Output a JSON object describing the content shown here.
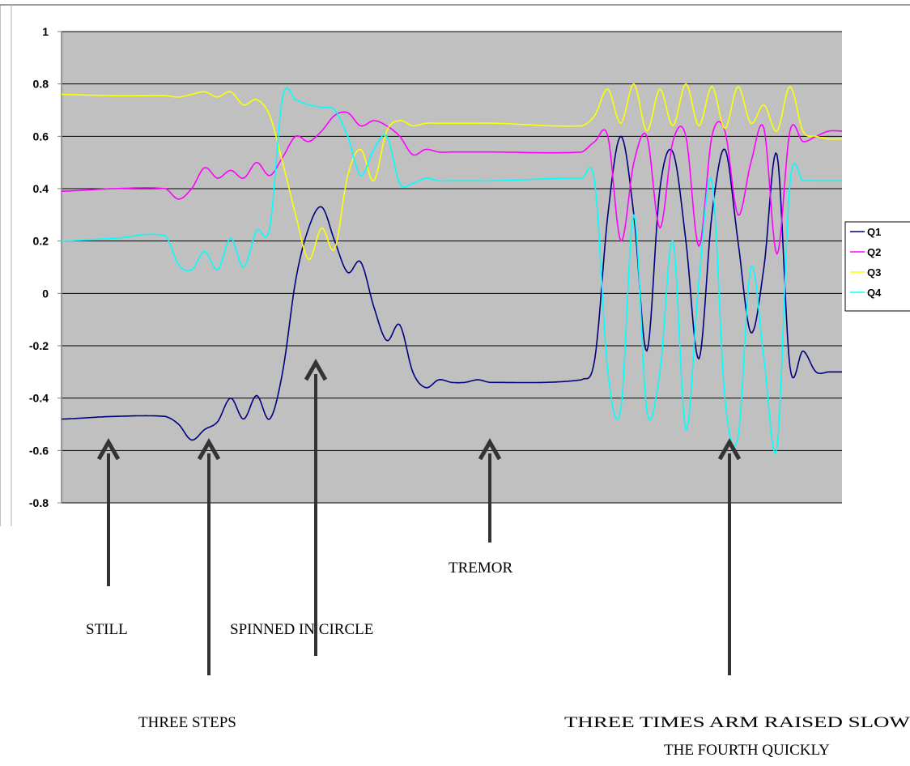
{
  "chart_data": {
    "type": "line",
    "title": "",
    "xlabel": "",
    "ylabel": "",
    "xlim": [
      0,
      300
    ],
    "ylim": [
      -0.8,
      1
    ],
    "yticks": [
      -0.8,
      -0.6,
      -0.4,
      -0.2,
      0,
      0.2,
      0.4,
      0.6,
      0.8,
      1
    ],
    "ytick_labels": [
      "-0.8",
      "-0.6",
      "-0.4",
      "-0.2",
      "0",
      "0.2",
      "0.4",
      "0.6",
      "0.8",
      "1"
    ],
    "grid": true,
    "legend_position": "right",
    "colors": {
      "Q1": "#000080",
      "Q2": "#ff00ff",
      "Q3": "#ffff00",
      "Q4": "#00ffff",
      "plot_bg": "#c0c0c0"
    },
    "series": [
      {
        "name": "Q1",
        "color": "#000080",
        "x": [
          0,
          20,
          40,
          45,
          50,
          55,
          60,
          65,
          70,
          75,
          80,
          85,
          90,
          95,
          100,
          105,
          110,
          115,
          120,
          125,
          130,
          135,
          140,
          145,
          150,
          155,
          160,
          165,
          200,
          205,
          210,
          215,
          220,
          225,
          230,
          235,
          240,
          245,
          250,
          255,
          260,
          265,
          270,
          275,
          280,
          285,
          290,
          295,
          300
        ],
        "y": [
          -0.48,
          -0.47,
          -0.47,
          -0.5,
          -0.56,
          -0.52,
          -0.49,
          -0.4,
          -0.48,
          -0.39,
          -0.48,
          -0.3,
          0.05,
          0.25,
          0.33,
          0.2,
          0.08,
          0.12,
          -0.05,
          -0.18,
          -0.12,
          -0.3,
          -0.36,
          -0.33,
          -0.34,
          -0.34,
          -0.33,
          -0.34,
          -0.33,
          -0.25,
          0.3,
          0.6,
          0.3,
          -0.22,
          0.4,
          0.54,
          0.2,
          -0.25,
          0.3,
          0.55,
          0.2,
          -0.15,
          0.1,
          0.53,
          -0.28,
          -0.22,
          -0.3,
          -0.3,
          -0.3
        ],
        "tremor": [
          [
            130,
            210,
            0.018
          ]
        ]
      },
      {
        "name": "Q2",
        "color": "#ff00ff",
        "x": [
          0,
          20,
          40,
          45,
          50,
          55,
          60,
          65,
          70,
          75,
          80,
          85,
          90,
          95,
          100,
          105,
          110,
          115,
          120,
          125,
          130,
          135,
          140,
          145,
          150,
          155,
          160,
          165,
          200,
          205,
          210,
          215,
          220,
          225,
          230,
          235,
          240,
          245,
          250,
          255,
          260,
          265,
          270,
          275,
          280,
          285,
          290,
          295,
          300
        ],
        "y": [
          0.39,
          0.4,
          0.4,
          0.36,
          0.4,
          0.48,
          0.44,
          0.47,
          0.44,
          0.5,
          0.45,
          0.52,
          0.6,
          0.58,
          0.62,
          0.68,
          0.69,
          0.64,
          0.66,
          0.64,
          0.6,
          0.53,
          0.55,
          0.54,
          0.54,
          0.54,
          0.54,
          0.54,
          0.54,
          0.58,
          0.6,
          0.2,
          0.5,
          0.6,
          0.25,
          0.58,
          0.6,
          0.18,
          0.6,
          0.62,
          0.3,
          0.5,
          0.63,
          0.15,
          0.62,
          0.58,
          0.6,
          0.62,
          0.62
        ],
        "tremor": [
          [
            130,
            210,
            0.02
          ]
        ]
      },
      {
        "name": "Q3",
        "color": "#ffff00",
        "x": [
          0,
          20,
          40,
          45,
          50,
          55,
          60,
          65,
          70,
          75,
          80,
          85,
          90,
          95,
          100,
          105,
          110,
          115,
          120,
          125,
          130,
          135,
          140,
          145,
          150,
          155,
          160,
          165,
          200,
          205,
          210,
          215,
          220,
          225,
          230,
          235,
          240,
          245,
          250,
          255,
          260,
          265,
          270,
          275,
          280,
          285,
          290,
          295,
          300
        ],
        "y": [
          0.76,
          0.755,
          0.755,
          0.75,
          0.76,
          0.77,
          0.75,
          0.77,
          0.72,
          0.74,
          0.68,
          0.5,
          0.3,
          0.13,
          0.25,
          0.17,
          0.45,
          0.55,
          0.43,
          0.62,
          0.66,
          0.64,
          0.65,
          0.65,
          0.65,
          0.65,
          0.65,
          0.65,
          0.64,
          0.68,
          0.78,
          0.65,
          0.8,
          0.62,
          0.78,
          0.64,
          0.8,
          0.64,
          0.79,
          0.63,
          0.79,
          0.65,
          0.72,
          0.62,
          0.79,
          0.62,
          0.6,
          0.59,
          0.59
        ],
        "tremor": [
          [
            130,
            210,
            0.016
          ]
        ]
      },
      {
        "name": "Q4",
        "color": "#00ffff",
        "x": [
          0,
          20,
          40,
          45,
          50,
          55,
          60,
          65,
          70,
          75,
          80,
          85,
          90,
          95,
          100,
          105,
          110,
          115,
          120,
          125,
          130,
          135,
          140,
          145,
          150,
          155,
          160,
          165,
          200,
          205,
          210,
          215,
          220,
          225,
          230,
          235,
          240,
          245,
          250,
          255,
          260,
          265,
          270,
          275,
          280,
          285,
          290,
          295,
          300
        ],
        "y": [
          0.2,
          0.21,
          0.22,
          0.11,
          0.09,
          0.16,
          0.09,
          0.21,
          0.1,
          0.24,
          0.25,
          0.75,
          0.74,
          0.72,
          0.71,
          0.7,
          0.6,
          0.45,
          0.55,
          0.6,
          0.42,
          0.42,
          0.44,
          0.43,
          0.43,
          0.43,
          0.43,
          0.43,
          0.44,
          0.42,
          -0.3,
          -0.44,
          0.3,
          -0.45,
          -0.3,
          0.2,
          -0.52,
          0.05,
          0.43,
          -0.4,
          -0.55,
          0.1,
          -0.25,
          -0.59,
          0.42,
          0.43,
          0.43,
          0.43,
          0.43
        ],
        "tremor": [
          [
            130,
            210,
            0.02
          ]
        ]
      }
    ],
    "annotations": [
      {
        "key": "still",
        "text": "STILL",
        "x": 18
      },
      {
        "key": "three-steps",
        "text": "THREE STEPS",
        "x": 58
      },
      {
        "key": "spinned",
        "text": "SPINNED IN CIRCLE",
        "x": 98
      },
      {
        "key": "tremor",
        "text": "TREMOR",
        "x": 165
      },
      {
        "key": "arm-raised",
        "text": "THREE TIMES ARM RAISED SLOWLY",
        "x": 255
      },
      {
        "key": "fourth-quickly",
        "text": "THE FOURTH QUICKLY",
        "x": 255
      }
    ]
  }
}
